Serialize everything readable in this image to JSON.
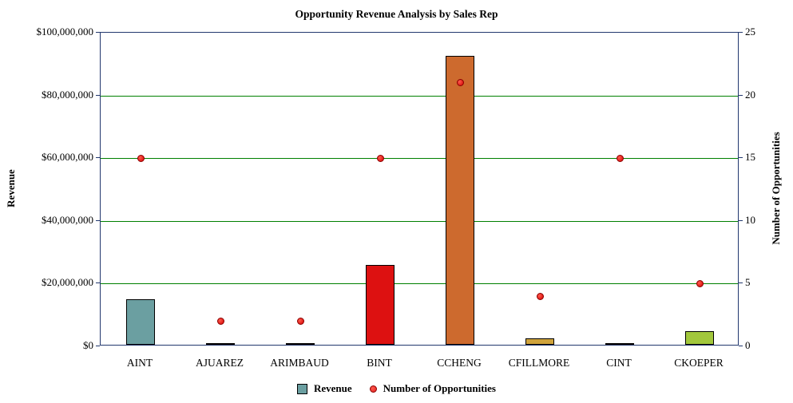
{
  "chart_data": {
    "type": "bar",
    "title": "Opportunity Revenue Analysis by Sales Rep",
    "categories": [
      "AINT",
      "AJUAREZ",
      "ARIMBAUD",
      "BINT",
      "CCHENG",
      "CFILLMORE",
      "CINT",
      "CKOEPER"
    ],
    "series": [
      {
        "name": "Revenue",
        "type": "bar",
        "axis": "left",
        "values": [
          14500000,
          400000,
          400000,
          25500000,
          92000000,
          2000000,
          400000,
          4300000
        ],
        "colors": [
          "#6b9fa1",
          "#8a8a8a",
          "#8a8a8a",
          "#dd1111",
          "#cd6a2e",
          "#cfa33c",
          "#8a8a8a",
          "#a2c73c"
        ],
        "legend_color": "#6b9fa1"
      },
      {
        "name": "Number of Opportunities",
        "type": "scatter",
        "axis": "right",
        "values": [
          15,
          2,
          2,
          15,
          21,
          4,
          15,
          5
        ],
        "color": "#e02020"
      }
    ],
    "left_axis": {
      "label": "Revenue",
      "min": 0,
      "max": 100000000,
      "tick_labels": [
        "$0",
        "$20,000,000",
        "$40,000,000",
        "$60,000,000",
        "$80,000,000",
        "$100,000,000"
      ]
    },
    "right_axis": {
      "label": "Number of Opportunities",
      "min": 0,
      "max": 25,
      "tick_labels": [
        "0",
        "5",
        "10",
        "15",
        "20",
        "25"
      ]
    },
    "grid": true,
    "gridline_color": "#008000",
    "plot_border_color": "#22386e",
    "legend_position": "bottom"
  }
}
